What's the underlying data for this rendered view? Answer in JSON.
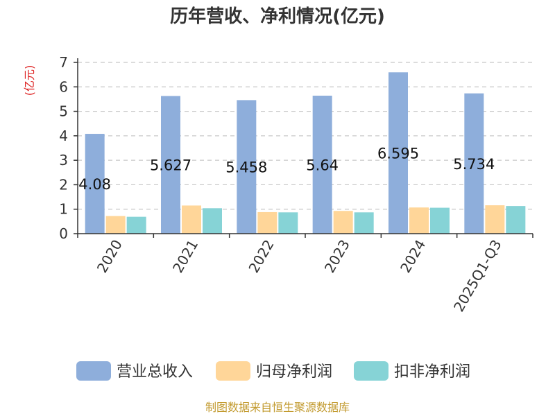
{
  "chart_data": {
    "type": "bar",
    "title": "历年营收、净利情况(亿元)",
    "ylabel": "(亿元)",
    "categories": [
      "2020",
      "2021",
      "2022",
      "2023",
      "2024",
      "2025Q1-Q3"
    ],
    "series": [
      {
        "name": "营业总收入",
        "values": [
          4.08,
          5.627,
          5.458,
          5.64,
          6.595,
          5.734
        ],
        "color": "#8eaedb",
        "labels": [
          "4.08",
          "5.627",
          "5.458",
          "5.64",
          "6.595",
          "5.734"
        ]
      },
      {
        "name": "归母净利润",
        "values": [
          0.72,
          1.15,
          0.88,
          0.93,
          1.07,
          1.16
        ],
        "color": "#ffd699"
      },
      {
        "name": "扣非净利润",
        "values": [
          0.69,
          1.04,
          0.87,
          0.87,
          1.06,
          1.13
        ],
        "color": "#86d3d6"
      }
    ],
    "ylim": [
      0,
      7
    ],
    "yticks": [
      0,
      1,
      2,
      3,
      4,
      5,
      6,
      7
    ],
    "grid": true,
    "legend_position": "bottom"
  },
  "source_note": "制图数据来自恒生聚源数据库"
}
